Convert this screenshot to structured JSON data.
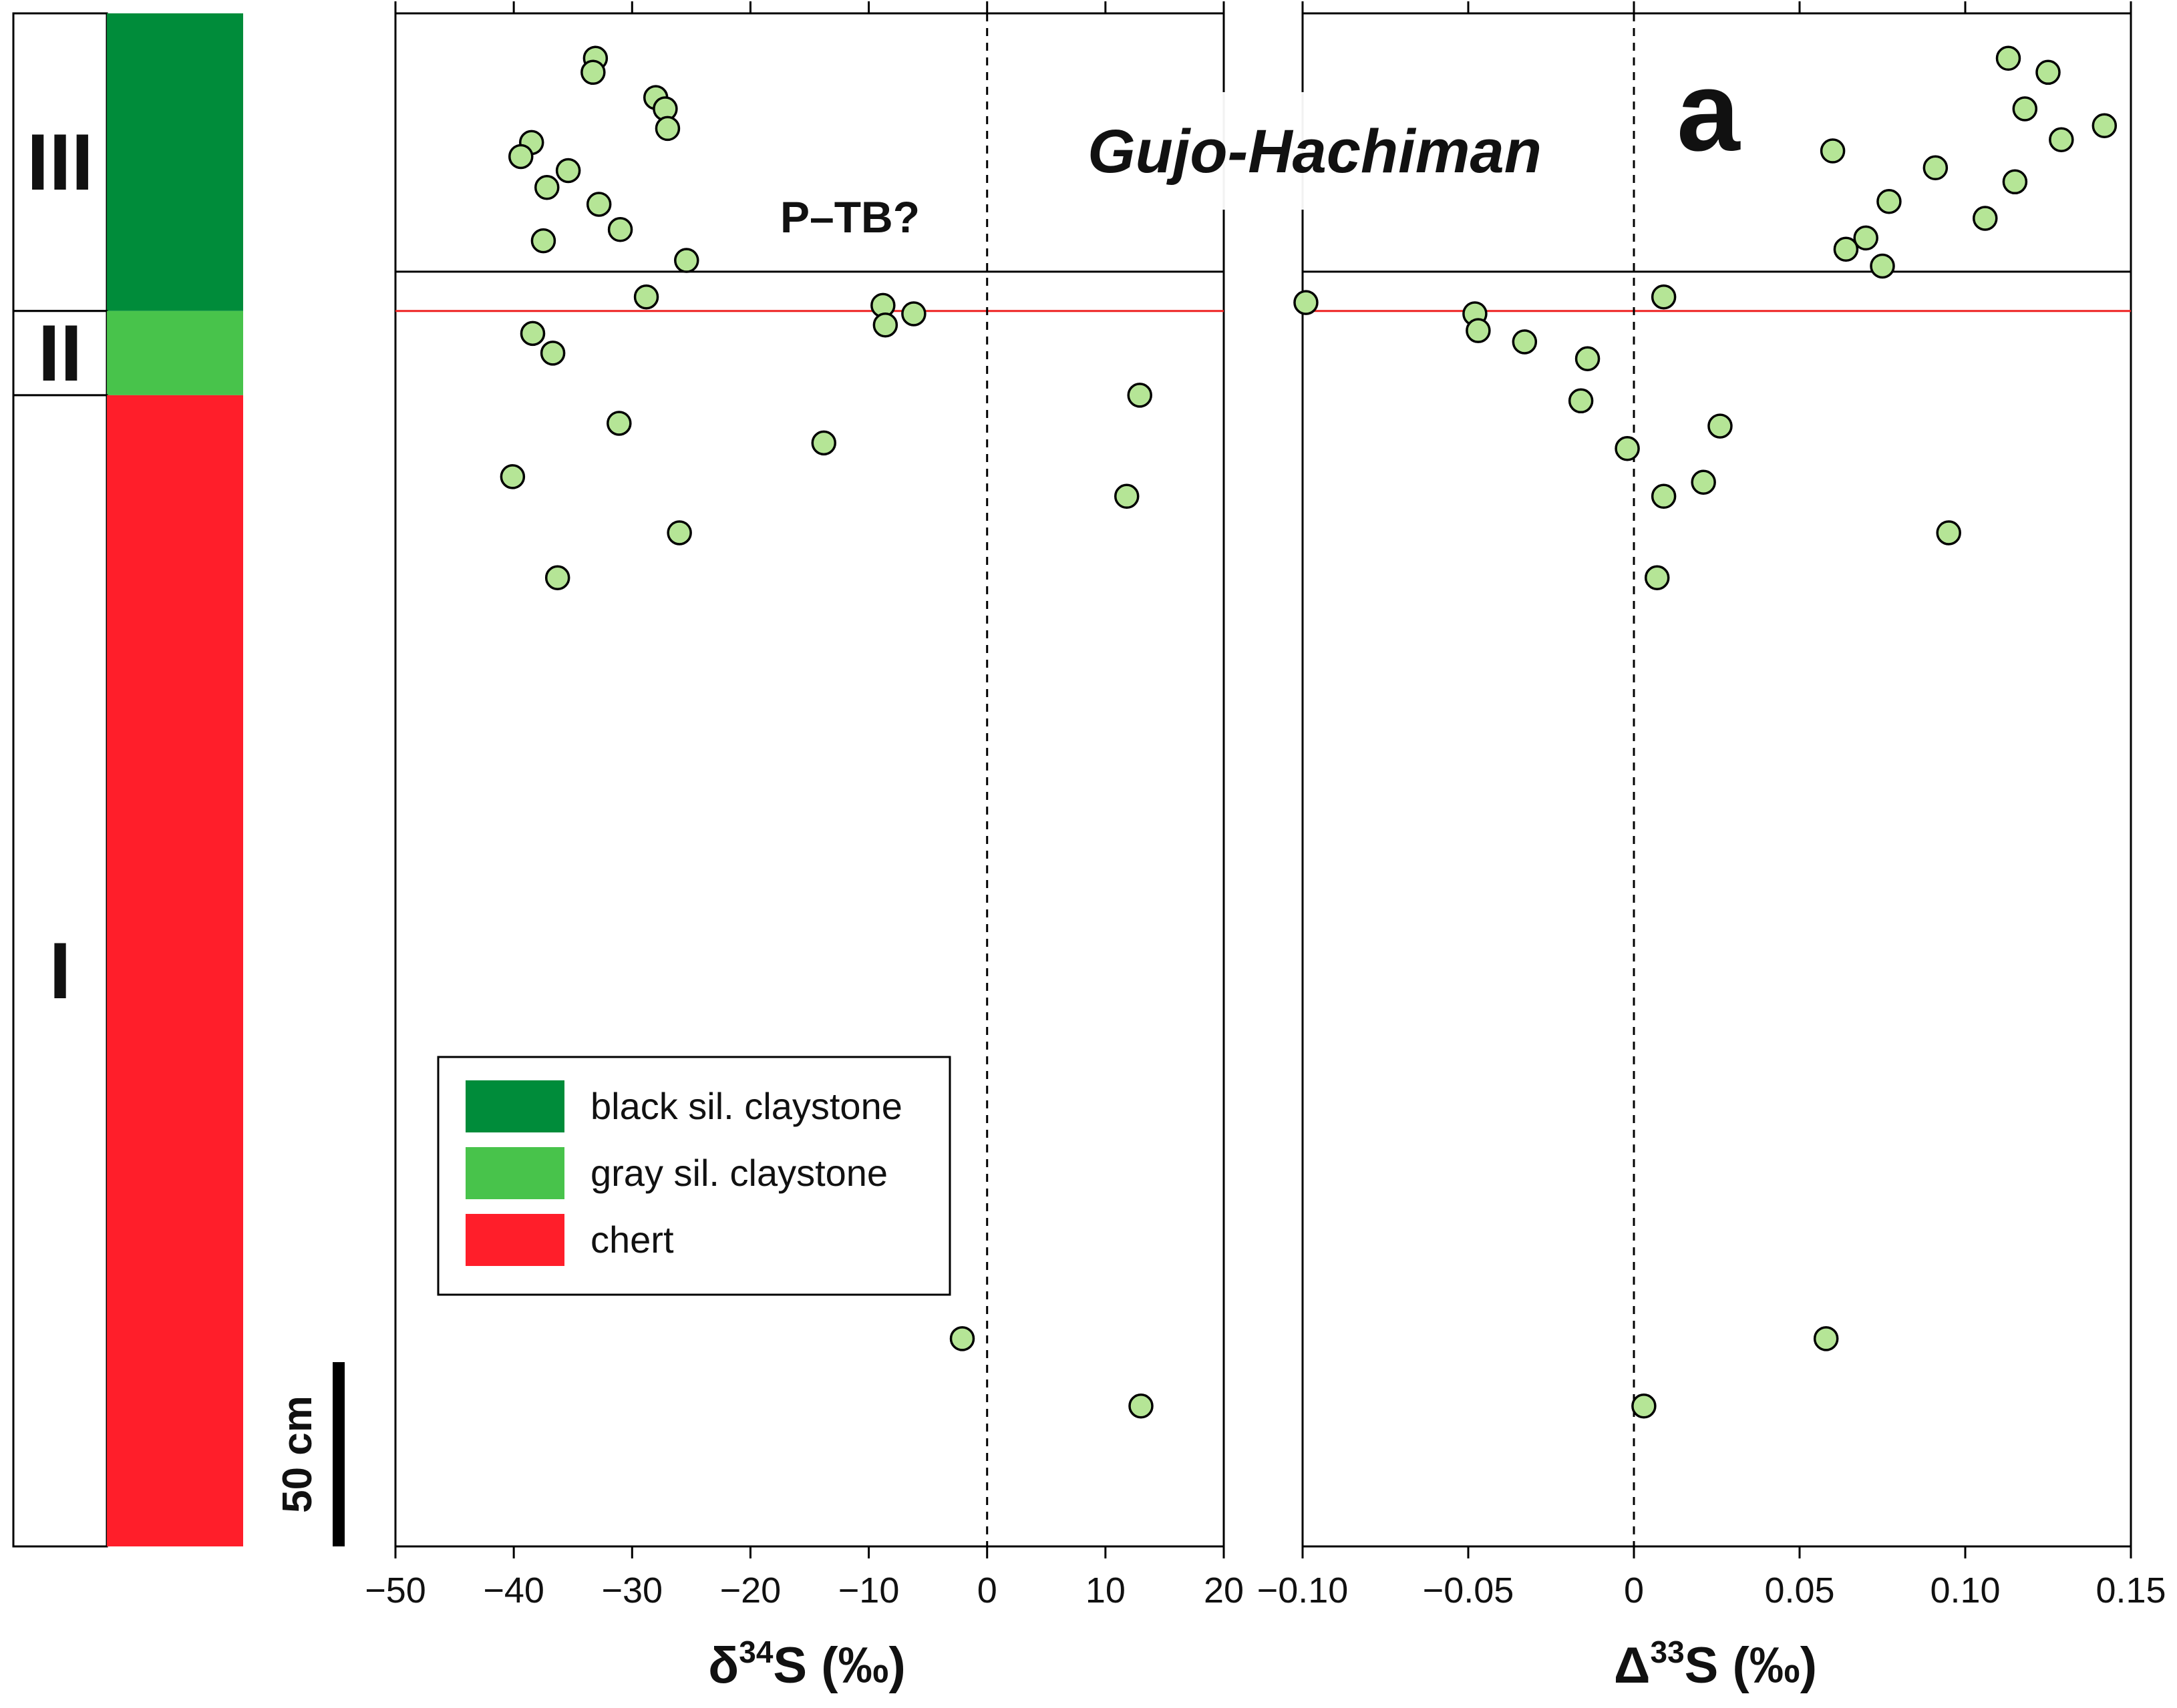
{
  "chart_data": {
    "type": "scatter",
    "site_title": "Gujo-Hachiman",
    "panel_label": "a",
    "boundary_label": "P–TB?",
    "scale_bar_label": "50 cm",
    "point_color": "#b5e596",
    "boundary_line_color": "#000000",
    "redline_color": "#ee2222",
    "height_units": "cm above base of section",
    "stratigraphy": {
      "units": [
        {
          "roman": "III",
          "lithology": "black sil. claystone",
          "bottom": 376,
          "top": 482
        },
        {
          "roman": "II",
          "lithology": "gray sil. claystone",
          "bottom": 346,
          "top": 376
        },
        {
          "roman": "I",
          "lithology": "chert",
          "bottom": -64,
          "top": 346
        }
      ],
      "colors": {
        "black sil. claystone": "#008c3a",
        "gray sil. claystone": "#48c34b",
        "chert": "#ff1e2a"
      }
    },
    "legend": [
      {
        "label": "black sil. claystone",
        "color": "#008c3a"
      },
      {
        "label": "gray sil. claystone",
        "color": "#48c34b"
      },
      {
        "label": "chert",
        "color": "#ff1e2a"
      }
    ],
    "boundary_heights": {
      "black_line": 390,
      "red_line": 376
    },
    "y_range": [
      -64,
      482
    ],
    "panels": [
      {
        "id": "d34S",
        "xlabel_prefix": "δ",
        "xlabel_sup": "34",
        "xlabel_suffix": "S (‰)",
        "xlim": [
          -50,
          20
        ],
        "ticks": [
          -50,
          -40,
          -30,
          -20,
          -10,
          0,
          10,
          20
        ],
        "tick_labels": [
          "−50",
          "−40",
          "−30",
          "−20",
          "−10",
          "0",
          "10",
          "20"
        ],
        "zero_line": 0,
        "points": [
          {
            "x": -33.1,
            "y": 466
          },
          {
            "x": -33.3,
            "y": 461
          },
          {
            "x": -28.0,
            "y": 452
          },
          {
            "x": -27.2,
            "y": 448
          },
          {
            "x": -27.0,
            "y": 441
          },
          {
            "x": -38.5,
            "y": 436
          },
          {
            "x": -39.4,
            "y": 431
          },
          {
            "x": -35.4,
            "y": 426
          },
          {
            "x": -37.2,
            "y": 420
          },
          {
            "x": -32.8,
            "y": 414
          },
          {
            "x": -31.0,
            "y": 405
          },
          {
            "x": -37.5,
            "y": 401
          },
          {
            "x": -25.4,
            "y": 394
          },
          {
            "x": -28.8,
            "y": 381
          },
          {
            "x": -8.8,
            "y": 378
          },
          {
            "x": -6.2,
            "y": 375
          },
          {
            "x": -8.6,
            "y": 371
          },
          {
            "x": -38.4,
            "y": 368
          },
          {
            "x": -36.7,
            "y": 361
          },
          {
            "x": 12.9,
            "y": 346
          },
          {
            "x": -31.1,
            "y": 336
          },
          {
            "x": -13.8,
            "y": 329
          },
          {
            "x": -40.1,
            "y": 317
          },
          {
            "x": 11.8,
            "y": 310
          },
          {
            "x": -26.0,
            "y": 297
          },
          {
            "x": -36.3,
            "y": 281
          },
          {
            "x": -2.1,
            "y": 10
          },
          {
            "x": 13.0,
            "y": -14
          }
        ]
      },
      {
        "id": "D33S",
        "xlabel_prefix": "Δ",
        "xlabel_sup": "33",
        "xlabel_suffix": "S (‰)",
        "xlim": [
          -0.1,
          0.15
        ],
        "ticks": [
          -0.1,
          -0.05,
          0,
          0.05,
          0.1,
          0.15
        ],
        "tick_labels": [
          "−0.10",
          "−0.05",
          "0",
          "0.05",
          "0.10",
          "0.15"
        ],
        "zero_line": 0,
        "points": [
          {
            "x": 0.113,
            "y": 466
          },
          {
            "x": 0.125,
            "y": 461
          },
          {
            "x": 0.118,
            "y": 448
          },
          {
            "x": 0.142,
            "y": 442
          },
          {
            "x": 0.129,
            "y": 437
          },
          {
            "x": 0.06,
            "y": 433
          },
          {
            "x": 0.091,
            "y": 427
          },
          {
            "x": 0.115,
            "y": 422
          },
          {
            "x": 0.077,
            "y": 415
          },
          {
            "x": 0.106,
            "y": 409
          },
          {
            "x": 0.07,
            "y": 402
          },
          {
            "x": 0.064,
            "y": 398
          },
          {
            "x": 0.075,
            "y": 392
          },
          {
            "x": 0.009,
            "y": 381
          },
          {
            "x": -0.099,
            "y": 379
          },
          {
            "x": -0.048,
            "y": 375
          },
          {
            "x": -0.047,
            "y": 369
          },
          {
            "x": -0.033,
            "y": 365
          },
          {
            "x": -0.014,
            "y": 359
          },
          {
            "x": -0.016,
            "y": 344
          },
          {
            "x": 0.026,
            "y": 335
          },
          {
            "x": -0.002,
            "y": 327
          },
          {
            "x": 0.021,
            "y": 315
          },
          {
            "x": 0.009,
            "y": 310
          },
          {
            "x": 0.095,
            "y": 297
          },
          {
            "x": 0.007,
            "y": 281
          },
          {
            "x": 0.058,
            "y": 10
          },
          {
            "x": 0.003,
            "y": -14
          }
        ]
      }
    ]
  }
}
